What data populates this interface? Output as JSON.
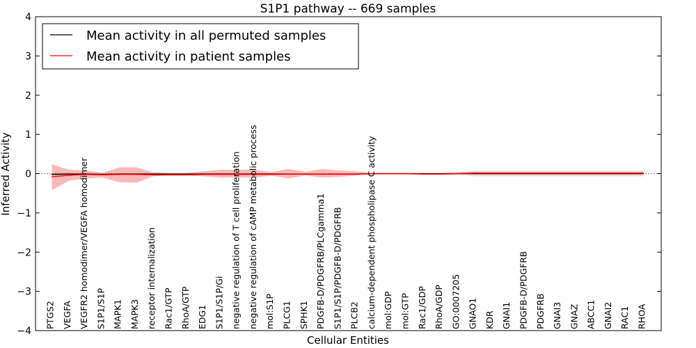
{
  "chart_data": {
    "type": "line",
    "title": "S1P1 pathway -- 669 samples",
    "xlabel": "Cellular Entities",
    "ylabel": "Inferred Activity",
    "ylim": [
      -4,
      4
    ],
    "yticks": [
      -4,
      -3,
      -2,
      -1,
      0,
      1,
      2,
      3,
      4
    ],
    "ytick_labels": [
      "−4",
      "−3",
      "−2",
      "−1",
      "0",
      "1",
      "2",
      "3",
      "4"
    ],
    "legend_position": "top-left",
    "categories": [
      "PTGS2",
      "VEGFA",
      "VEGFR2 homodimer/VEGFA homodimer",
      "S1P1/S1P",
      "MAPK1",
      "MAPK3",
      "receptor internalization",
      "Rac1/GTP",
      "RhoA/GTP",
      "EDG1",
      "S1P1/S1P/Gi",
      "negative regulation of T cell proliferation",
      "negative regulation of cAMP metabolic process",
      "mol:S1P",
      "PLCG1",
      "SPHK1",
      "PDGFB-D/PDGFRB/PLCgamma1",
      "S1P1/S1P/PDGFB-D/PDGFRB",
      "PLCB2",
      "calcium-dependent phospholipase C activity",
      "mol:GDP",
      "mol:GTP",
      "Rac1/GDP",
      "RhoA/GDP",
      "GO:0007205",
      "GNAO1",
      "KDR",
      "GNAI1",
      "PDGFB-D/PDGFRB",
      "PDGFRB",
      "GNAI3",
      "GNAZ",
      "ABCC1",
      "GNAI2",
      "RAC1",
      "RHOA"
    ],
    "series": [
      {
        "name": "Mean activity in all permuted samples",
        "color": "#000000",
        "values": [
          -0.02,
          -0.01,
          -0.01,
          -0.02,
          -0.01,
          -0.01,
          -0.01,
          -0.01,
          -0.01,
          -0.01,
          -0.01,
          -0.01,
          -0.01,
          -0.01,
          -0.01,
          -0.01,
          -0.01,
          -0.01,
          -0.01,
          0.0,
          0.0,
          0.0,
          0.0,
          0.0,
          0.0,
          0.0,
          0.0,
          0.0,
          0.0,
          0.0,
          0.0,
          0.0,
          0.0,
          0.0,
          0.0,
          0.0
        ],
        "lower": [
          -0.05,
          -0.04,
          -0.04,
          -0.04,
          -0.03,
          -0.03,
          -0.03,
          -0.03,
          -0.03,
          -0.03,
          -0.03,
          -0.03,
          -0.03,
          -0.03,
          -0.03,
          -0.03,
          -0.03,
          -0.03,
          -0.03,
          -0.02,
          -0.02,
          -0.02,
          -0.02,
          -0.02,
          -0.03,
          -0.07,
          -0.07,
          -0.07,
          -0.07,
          -0.07,
          -0.07,
          -0.07,
          -0.07,
          -0.07,
          -0.07,
          -0.07
        ],
        "upper": [
          0.03,
          0.02,
          0.02,
          0.01,
          0.01,
          0.01,
          0.01,
          0.01,
          0.01,
          0.01,
          0.01,
          0.01,
          0.01,
          0.01,
          0.01,
          0.01,
          0.01,
          0.01,
          0.01,
          0.02,
          0.02,
          0.02,
          0.02,
          0.02,
          0.03,
          0.07,
          0.07,
          0.07,
          0.07,
          0.07,
          0.07,
          0.07,
          0.07,
          0.07,
          0.07,
          0.07
        ]
      },
      {
        "name": "Mean activity in patient samples",
        "color": "#ff0000",
        "values": [
          -0.08,
          -0.04,
          -0.02,
          -0.03,
          -0.02,
          -0.02,
          -0.03,
          -0.03,
          -0.03,
          -0.02,
          -0.02,
          -0.02,
          -0.02,
          -0.02,
          -0.01,
          -0.01,
          -0.01,
          -0.01,
          -0.01,
          0.0,
          0.0,
          0.0,
          -0.01,
          -0.01,
          0.0,
          0.01,
          0.01,
          0.01,
          0.01,
          0.01,
          0.01,
          0.01,
          0.01,
          0.01,
          0.01,
          0.01
        ],
        "lower": [
          -0.42,
          -0.18,
          -0.12,
          -0.1,
          -0.22,
          -0.23,
          -0.07,
          -0.05,
          -0.05,
          -0.07,
          -0.1,
          -0.1,
          -0.1,
          -0.05,
          -0.12,
          -0.05,
          -0.1,
          -0.08,
          -0.05,
          -0.02,
          -0.02,
          -0.02,
          -0.03,
          -0.03,
          -0.02,
          -0.03,
          -0.03,
          -0.03,
          -0.03,
          -0.03,
          -0.03,
          -0.03,
          -0.03,
          -0.03,
          -0.03,
          -0.03
        ],
        "upper": [
          0.24,
          0.1,
          0.08,
          0.02,
          0.16,
          0.16,
          0.03,
          0.02,
          0.02,
          0.06,
          0.1,
          0.1,
          0.1,
          0.04,
          0.12,
          0.05,
          0.12,
          0.08,
          0.06,
          0.02,
          0.02,
          0.02,
          0.02,
          0.02,
          0.03,
          0.05,
          0.05,
          0.05,
          0.05,
          0.05,
          0.05,
          0.05,
          0.05,
          0.05,
          0.05,
          0.05
        ]
      }
    ]
  }
}
